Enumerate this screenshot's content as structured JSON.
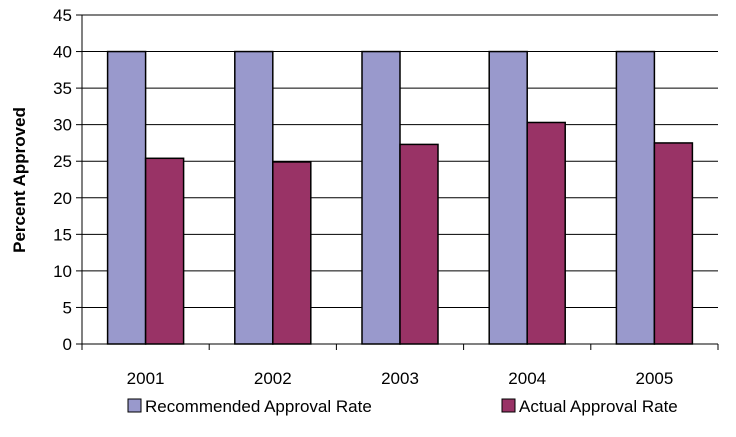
{
  "chart_data": {
    "type": "bar",
    "title": "",
    "xlabel": "",
    "ylabel": "Percent Approved",
    "categories": [
      "2001",
      "2002",
      "2003",
      "2004",
      "2005"
    ],
    "ylim": [
      0,
      45
    ],
    "yticks": [
      0,
      5,
      10,
      15,
      20,
      25,
      30,
      35,
      40,
      45
    ],
    "grid": "horizontal",
    "legend_position": "bottom",
    "series": [
      {
        "name": "Recommended Approval Rate",
        "values": [
          40,
          40,
          40,
          40,
          40
        ],
        "color": "#9999CC"
      },
      {
        "name": "Actual Approval Rate",
        "values": [
          25.4,
          24.9,
          27.3,
          30.3,
          27.5
        ],
        "color": "#993366"
      }
    ]
  }
}
